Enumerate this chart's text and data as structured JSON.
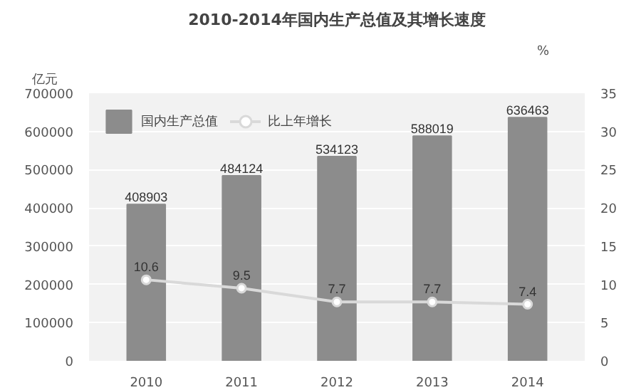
{
  "chart_data": {
    "type": "bar",
    "title": "2010-2014年国内生产总值及其增长速度",
    "ylabel": "亿元",
    "y2label": "%",
    "categories": [
      "2010",
      "2011",
      "2012",
      "2013",
      "2014"
    ],
    "series": [
      {
        "name": "国内生产总值",
        "color": "#8c8c8c",
        "values": [
          408903,
          484124,
          534123,
          588019,
          636463
        ]
      },
      {
        "name": "比上年增长",
        "type": "line",
        "axis": "y2",
        "color": "#d9d9d9",
        "values": [
          10.6,
          9.5,
          7.7,
          7.7,
          7.4
        ]
      }
    ],
    "ylim": [
      0,
      700000
    ],
    "yticks": [
      0,
      100000,
      200000,
      300000,
      400000,
      500000,
      600000,
      700000
    ],
    "y2lim": [
      0,
      35
    ],
    "y2ticks": [
      0,
      5,
      10,
      15,
      20,
      25,
      30,
      35
    ],
    "grid": "y",
    "legend": "top left",
    "marker": "circle",
    "data_labels": true
  }
}
